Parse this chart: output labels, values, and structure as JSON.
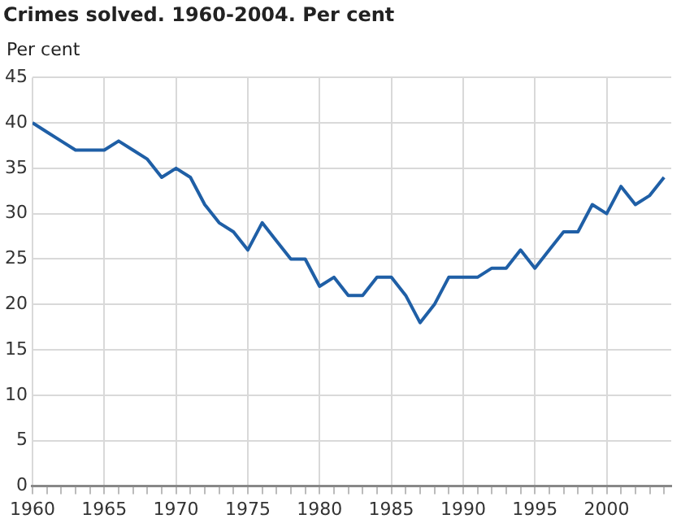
{
  "chart_data": {
    "type": "line",
    "title": "Crimes solved. 1960-2004. Per cent",
    "ylabel": "Per cent",
    "x": [
      1960,
      1961,
      1962,
      1963,
      1964,
      1965,
      1966,
      1967,
      1968,
      1969,
      1970,
      1971,
      1972,
      1973,
      1974,
      1975,
      1976,
      1977,
      1978,
      1979,
      1980,
      1981,
      1982,
      1983,
      1984,
      1985,
      1986,
      1987,
      1988,
      1989,
      1990,
      1991,
      1992,
      1993,
      1994,
      1995,
      1996,
      1997,
      1998,
      1999,
      2000,
      2001,
      2002,
      2003,
      2004
    ],
    "series": [
      {
        "color": "#1f5fa6",
        "values": [
          40,
          39,
          38,
          37,
          37,
          37,
          38,
          37,
          36,
          34,
          35,
          34,
          31,
          29,
          28,
          26,
          29,
          27,
          25,
          25,
          22,
          23,
          21,
          21,
          23,
          23,
          21,
          18,
          20,
          23,
          23,
          23,
          24,
          24,
          26,
          24,
          26,
          28,
          28,
          31,
          30,
          33,
          31,
          32,
          34
        ]
      }
    ],
    "xlim": [
      1960,
      2004.5
    ],
    "xticks": [
      1960,
      {
        "value": 1961,
        "label": null
      },
      {
        "value": 1962,
        "label": null
      },
      {
        "value": 1963,
        "label": null
      },
      {
        "value": 1964,
        "label": null
      },
      1965,
      {
        "value": 1966,
        "label": null
      },
      {
        "value": 1967,
        "label": null
      },
      {
        "value": 1968,
        "label": null
      },
      {
        "value": 1969,
        "label": null
      },
      1970,
      {
        "value": 1971,
        "label": null
      },
      {
        "value": 1972,
        "label": null
      },
      {
        "value": 1973,
        "label": null
      },
      {
        "value": 1974,
        "label": null
      },
      1975,
      {
        "value": 1976,
        "label": null
      },
      {
        "value": 1977,
        "label": null
      },
      {
        "value": 1978,
        "label": null
      },
      {
        "value": 1979,
        "label": null
      },
      1980,
      {
        "value": 1981,
        "label": null
      },
      {
        "value": 1982,
        "label": null
      },
      {
        "value": 1983,
        "label": null
      },
      {
        "value": 1984,
        "label": null
      },
      1985,
      {
        "value": 1986,
        "label": null
      },
      {
        "value": 1987,
        "label": null
      },
      {
        "value": 1988,
        "label": null
      },
      {
        "value": 1989,
        "label": null
      },
      1990,
      {
        "value": 1991,
        "label": null
      },
      {
        "value": 1992,
        "label": null
      },
      {
        "value": 1993,
        "label": null
      },
      {
        "value": 1994,
        "label": null
      },
      1995,
      {
        "value": 1996,
        "label": null
      },
      {
        "value": 1997,
        "label": null
      },
      {
        "value": 1998,
        "label": null
      },
      {
        "value": 1999,
        "label": null
      },
      2000,
      {
        "value": 2001,
        "label": null
      },
      {
        "value": 2002,
        "label": null
      },
      {
        "value": 2003,
        "label": null
      },
      {
        "value": 2004,
        "label": null
      }
    ],
    "ylim": [
      0,
      45
    ],
    "yticks": [
      0,
      5,
      10,
      15,
      20,
      25,
      30,
      35,
      40,
      45
    ],
    "grid": true,
    "legend": false,
    "marker": "none",
    "line_style": "solid"
  }
}
